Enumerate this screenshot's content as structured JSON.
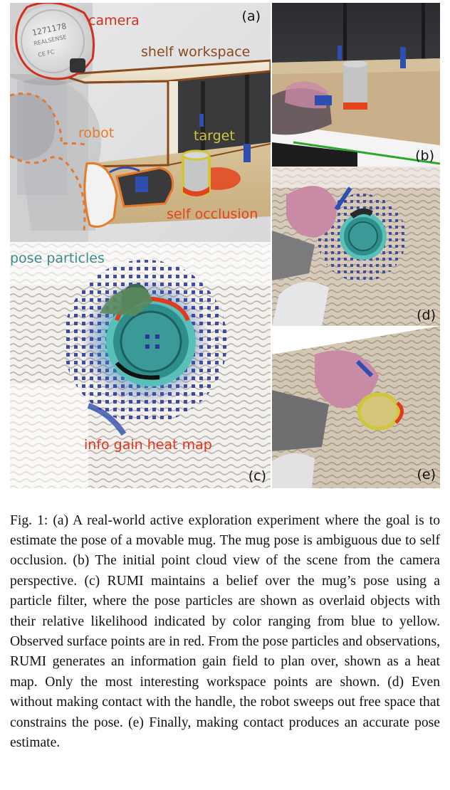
{
  "figure": {
    "panels": {
      "a": {
        "label": "(a)",
        "annotations": {
          "camera": "camera",
          "shelf": "shelf workspace",
          "robot": "robot",
          "target": "target",
          "occlusion": "self occlusion"
        },
        "camera_sticker": {
          "serial": "1271178",
          "brand": "REALSENSE",
          "mark": "CE FC"
        }
      },
      "b": {
        "label": "(b)"
      },
      "c": {
        "label": "(c)",
        "annotations": {
          "particles": "pose particles",
          "heatmap": "info gain heat map"
        }
      },
      "d": {
        "label": "(d)"
      },
      "e": {
        "label": "(e)"
      }
    },
    "colors": {
      "camera_red": "#d0311f",
      "shelf_brown": "#8a4a1c",
      "robot_orange": "#e8782a",
      "target_yellow": "#cfc63a",
      "occlusion_red": "#e3441d",
      "particles_teal": "#3a8c8c",
      "heatmap_red": "#e0331c",
      "observed_red": "#e03b1e",
      "particle_blue": "#2b3a9a",
      "mug_pink": "#c98aa6"
    }
  },
  "caption": "Fig. 1: (a) A real-world active exploration experiment where the goal is to estimate the pose of a movable mug. The mug pose is ambiguous due to self occlusion. (b) The initial point cloud view of the scene from the camera perspective. (c) RUMI maintains a belief over the mug’s pose using a particle filter, where the pose particles are shown as overlaid objects with their relative likelihood indicated by color ranging from blue to yellow. Observed surface points are in red. From the pose particles and observations, RUMI generates an information gain field to plan over, shown as a heat map. Only the most interesting workspace points are shown. (d) Even without making contact with the handle, the robot sweeps out free space that constrains the pose. (e) Finally, making contact produces an accurate pose estimate."
}
